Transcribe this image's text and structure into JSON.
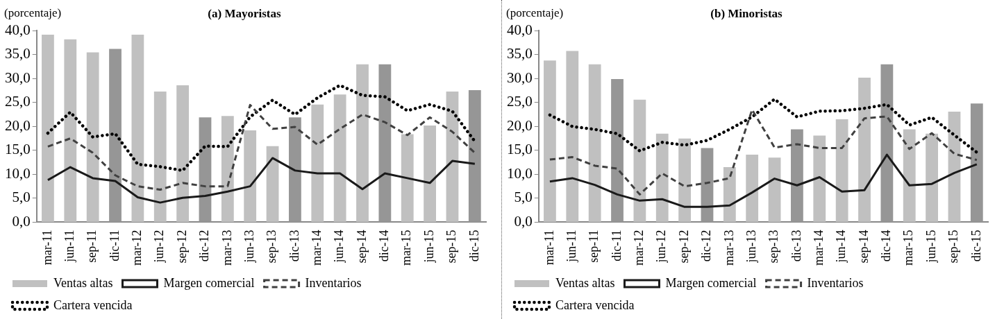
{
  "chart_data": [
    {
      "type": "bar",
      "title": "(a) Mayoristas",
      "ylabel": "(porcentaje)",
      "categories": [
        "mar-11",
        "jun-11",
        "sep-11",
        "dic-11",
        "mar-12",
        "jun-12",
        "sep-12",
        "dic-12",
        "mar-13",
        "jun-13",
        "sep-13",
        "dic-13",
        "mar-14",
        "jun-14",
        "sep-14",
        "dic-14",
        "mar-15",
        "jun-15",
        "sep-15",
        "dic-15"
      ],
      "ylim": [
        0,
        40
      ],
      "yticks": [
        {
          "value": 0,
          "label": "0,0"
        },
        {
          "value": 5,
          "label": "5,0"
        },
        {
          "value": 10,
          "label": "10,0"
        },
        {
          "value": 15,
          "label": "15,0"
        },
        {
          "value": 20,
          "label": "20,0"
        },
        {
          "value": 25,
          "label": "25,0"
        },
        {
          "value": 30,
          "label": "30,0"
        },
        {
          "value": 35,
          "label": "35,0"
        },
        {
          "value": 40,
          "label": "40,0"
        }
      ],
      "grid": false,
      "legend": "bottom",
      "marker": "none",
      "series": [
        {
          "name": "Ventas altas",
          "color": "#c0c0c0",
          "colors": [
            "#c0c0c0",
            "#c0c0c0",
            "#c0c0c0",
            "#969696",
            "#c0c0c0",
            "#c0c0c0",
            "#c0c0c0",
            "#969696",
            "#c0c0c0",
            "#c0c0c0",
            "#c0c0c0",
            "#969696",
            "#c0c0c0",
            "#c0c0c0",
            "#c0c0c0",
            "#969696",
            "#c0c0c0",
            "#c0c0c0",
            "#c0c0c0",
            "#969696"
          ],
          "values": [
            39.2,
            38.2,
            35.5,
            36.2,
            39.2,
            27.3,
            28.6,
            21.9,
            22.2,
            19.2,
            15.9,
            21.9,
            24.6,
            26.7,
            33.0,
            33.0,
            18.4,
            20.2,
            27.3,
            27.6
          ]
        },
        {
          "name": "Margen comercial",
          "type": "line",
          "color": "#1a1a1a",
          "line_style": "solid",
          "values": [
            8.8,
            11.5,
            9.2,
            8.6,
            5.2,
            4.1,
            5.1,
            5.5,
            6.4,
            7.5,
            13.4,
            10.8,
            10.2,
            10.2,
            6.9,
            10.2,
            9.2,
            8.2,
            12.8,
            12.2
          ]
        },
        {
          "name": "Inventarios",
          "type": "line",
          "color": "#404040",
          "line_style": "dashed",
          "values": [
            15.8,
            17.5,
            14.5,
            9.8,
            7.5,
            6.8,
            8.2,
            7.5,
            7.5,
            24.5,
            19.5,
            19.9,
            16.2,
            19.5,
            22.5,
            20.9,
            18.2,
            21.9,
            18.9,
            14.5
          ]
        },
        {
          "name": "Cartera vencida",
          "type": "line",
          "color": "#000000",
          "line_style": "dotted",
          "values": [
            18.6,
            23.0,
            17.8,
            18.5,
            12.1,
            11.6,
            10.8,
            15.9,
            15.8,
            22.0,
            25.5,
            22.5,
            26.0,
            28.6,
            26.5,
            26.2,
            23.3,
            24.6,
            23.2,
            16.9
          ]
        }
      ]
    },
    {
      "type": "bar",
      "title": "(b) Minoristas",
      "ylabel": "(porcentaje)",
      "categories": [
        "mar-11",
        "jun-11",
        "sep-11",
        "dic-11",
        "mar-12",
        "jun-12",
        "sep-12",
        "dic-12",
        "mar-13",
        "jun-13",
        "sep-13",
        "dic-13",
        "mar-14",
        "jun-14",
        "sep-14",
        "dic-14",
        "mar-15",
        "jun-15",
        "sep-15",
        "dic-15"
      ],
      "ylim": [
        0,
        40
      ],
      "yticks": [
        {
          "value": 0,
          "label": "0,0"
        },
        {
          "value": 5,
          "label": "5,0"
        },
        {
          "value": 10,
          "label": "10,0"
        },
        {
          "value": 15,
          "label": "15,0"
        },
        {
          "value": 20,
          "label": "20,0"
        },
        {
          "value": 25,
          "label": "25,0"
        },
        {
          "value": 30,
          "label": "30,0"
        },
        {
          "value": 35,
          "label": "35,0"
        },
        {
          "value": 40,
          "label": "40,0"
        }
      ],
      "grid": false,
      "legend": "bottom",
      "marker": "none",
      "series": [
        {
          "name": "Ventas altas",
          "color": "#c0c0c0",
          "colors": [
            "#c0c0c0",
            "#c0c0c0",
            "#c0c0c0",
            "#969696",
            "#c0c0c0",
            "#c0c0c0",
            "#c0c0c0",
            "#969696",
            "#c0c0c0",
            "#c0c0c0",
            "#c0c0c0",
            "#969696",
            "#c0c0c0",
            "#c0c0c0",
            "#c0c0c0",
            "#969696",
            "#c0c0c0",
            "#c0c0c0",
            "#c0c0c0",
            "#969696"
          ],
          "values": [
            33.8,
            35.8,
            33.0,
            29.9,
            25.6,
            18.5,
            17.5,
            15.5,
            11.5,
            14.1,
            13.5,
            19.4,
            18.1,
            21.5,
            30.2,
            33.0,
            19.4,
            18.5,
            23.1,
            24.8
          ]
        },
        {
          "name": "Margen comercial",
          "type": "line",
          "color": "#1a1a1a",
          "line_style": "solid",
          "values": [
            8.5,
            9.2,
            7.8,
            5.8,
            4.5,
            4.8,
            3.2,
            3.2,
            3.5,
            6.2,
            9.1,
            7.7,
            9.4,
            6.4,
            6.7,
            14.1,
            7.7,
            8.0,
            10.3,
            12.1
          ]
        },
        {
          "name": "Inventarios",
          "type": "line",
          "color": "#404040",
          "line_style": "dashed",
          "values": [
            13.1,
            13.6,
            11.8,
            11.2,
            5.8,
            10.2,
            7.5,
            8.2,
            9.2,
            23.5,
            15.6,
            16.3,
            15.5,
            15.5,
            21.7,
            22.1,
            15.3,
            18.6,
            14.3,
            13.0
          ]
        },
        {
          "name": "Cartera vencida",
          "type": "line",
          "color": "#000000",
          "line_style": "dotted",
          "values": [
            22.4,
            20.0,
            19.4,
            18.5,
            14.9,
            16.7,
            16.1,
            17.1,
            19.4,
            22.0,
            25.7,
            22.0,
            23.2,
            23.3,
            23.8,
            24.6,
            20.3,
            21.9,
            18.2,
            14.6
          ]
        }
      ]
    }
  ]
}
